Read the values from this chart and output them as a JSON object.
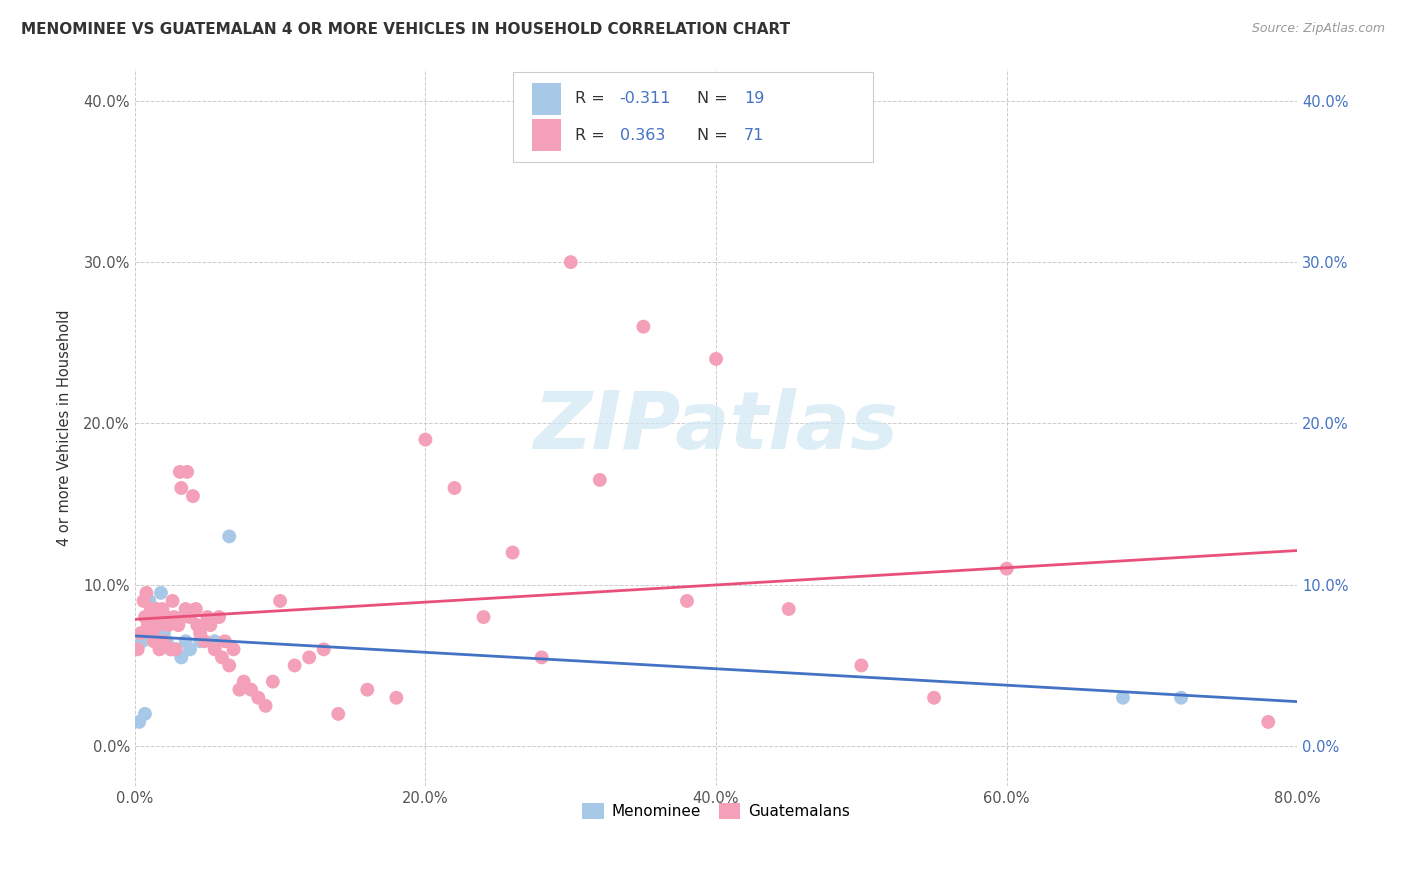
{
  "title": "MENOMINEE VS GUATEMALAN 4 OR MORE VEHICLES IN HOUSEHOLD CORRELATION CHART",
  "source": "Source: ZipAtlas.com",
  "ylabel": "4 or more Vehicles in Household",
  "xlim": [
    0.0,
    0.8
  ],
  "ylim": [
    -0.025,
    0.42
  ],
  "x_ticks": [
    0.0,
    0.2,
    0.4,
    0.6,
    0.8
  ],
  "y_ticks": [
    0.0,
    0.1,
    0.2,
    0.3,
    0.4
  ],
  "menominee_R": -0.311,
  "menominee_N": 19,
  "guatemalan_R": 0.363,
  "guatemalan_N": 71,
  "menominee_color": "#a8c8e8",
  "menominee_line_color": "#4472c4",
  "guatemalan_color": "#f4a0b8",
  "guatemalan_line_color": "#e8507a",
  "legend_color": "#4472c4",
  "watermark_text": "ZIPatlas",
  "watermark_color": "#d0e8f4",
  "menominee_x": [
    0.003,
    0.005,
    0.007,
    0.01,
    0.012,
    0.015,
    0.018,
    0.02,
    0.022,
    0.025,
    0.028,
    0.032,
    0.035,
    0.038,
    0.045,
    0.055,
    0.065,
    0.68,
    0.72
  ],
  "menominee_y": [
    0.015,
    0.065,
    0.02,
    0.09,
    0.085,
    0.08,
    0.095,
    0.07,
    0.065,
    0.06,
    0.06,
    0.055,
    0.065,
    0.06,
    0.065,
    0.065,
    0.13,
    0.03,
    0.03
  ],
  "guatemalan_x": [
    0.002,
    0.004,
    0.006,
    0.007,
    0.008,
    0.009,
    0.01,
    0.011,
    0.012,
    0.013,
    0.014,
    0.015,
    0.016,
    0.017,
    0.018,
    0.019,
    0.02,
    0.022,
    0.023,
    0.025,
    0.026,
    0.027,
    0.028,
    0.03,
    0.031,
    0.032,
    0.033,
    0.035,
    0.036,
    0.038,
    0.04,
    0.042,
    0.043,
    0.045,
    0.048,
    0.05,
    0.052,
    0.055,
    0.058,
    0.06,
    0.062,
    0.065,
    0.068,
    0.072,
    0.075,
    0.08,
    0.085,
    0.09,
    0.095,
    0.1,
    0.11,
    0.12,
    0.13,
    0.14,
    0.16,
    0.18,
    0.2,
    0.22,
    0.24,
    0.26,
    0.28,
    0.3,
    0.32,
    0.35,
    0.38,
    0.4,
    0.45,
    0.5,
    0.55,
    0.6,
    0.78
  ],
  "guatemalan_y": [
    0.06,
    0.07,
    0.09,
    0.08,
    0.095,
    0.075,
    0.08,
    0.085,
    0.07,
    0.065,
    0.08,
    0.085,
    0.075,
    0.06,
    0.08,
    0.085,
    0.065,
    0.08,
    0.075,
    0.06,
    0.09,
    0.08,
    0.06,
    0.075,
    0.17,
    0.16,
    0.08,
    0.085,
    0.17,
    0.08,
    0.155,
    0.085,
    0.075,
    0.07,
    0.065,
    0.08,
    0.075,
    0.06,
    0.08,
    0.055,
    0.065,
    0.05,
    0.06,
    0.035,
    0.04,
    0.035,
    0.03,
    0.025,
    0.04,
    0.09,
    0.05,
    0.055,
    0.06,
    0.02,
    0.035,
    0.03,
    0.19,
    0.16,
    0.08,
    0.12,
    0.055,
    0.3,
    0.165,
    0.26,
    0.09,
    0.24,
    0.085,
    0.05,
    0.03,
    0.11,
    0.015
  ]
}
